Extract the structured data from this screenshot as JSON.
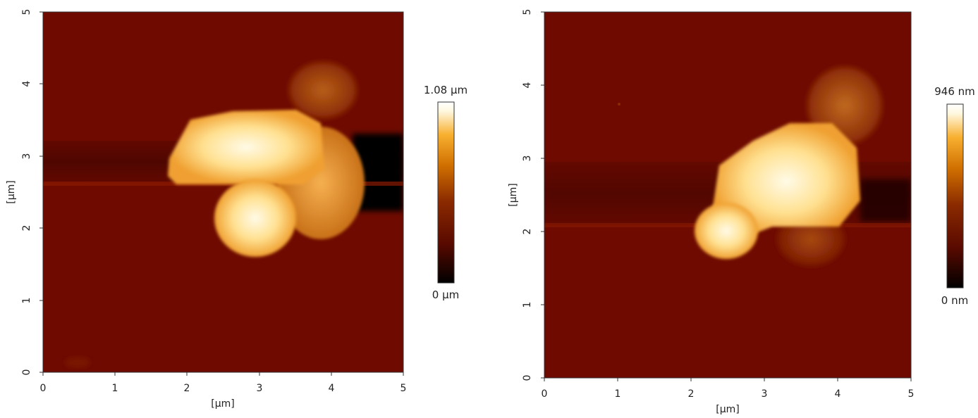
{
  "panels": [
    {
      "x_axis": {
        "label": "[µm]",
        "ticks": [
          "0",
          "1",
          "2",
          "3",
          "4",
          "5"
        ]
      },
      "y_axis": {
        "label": "[µm]",
        "ticks": [
          "0",
          "1",
          "2",
          "3",
          "4",
          "5"
        ]
      },
      "colorbar": {
        "max_label": "1.08 µm",
        "min_label": "0 µm"
      }
    },
    {
      "x_axis": {
        "label": "[µm]",
        "ticks": [
          "0",
          "1",
          "2",
          "3",
          "4",
          "5"
        ]
      },
      "y_axis": {
        "label": "[µm]",
        "ticks": [
          "0",
          "1",
          "2",
          "3",
          "4",
          "5"
        ]
      },
      "colorbar": {
        "max_label": "946 nm",
        "min_label": "0 nm"
      }
    }
  ],
  "colormap": [
    "#000000",
    "#5a0a00",
    "#8a2a00",
    "#d07000",
    "#f8b030",
    "#fff8e0",
    "#ffffff"
  ],
  "background_color": "#6e0a00"
}
